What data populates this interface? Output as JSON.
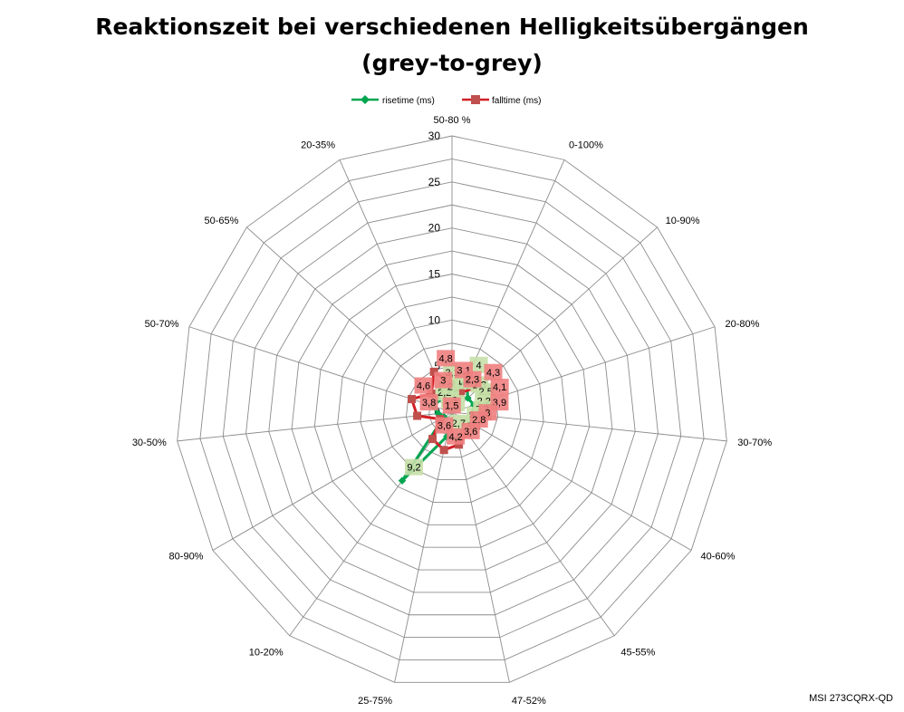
{
  "chart_data": {
    "type": "radar",
    "title_line1": "Reaktionszeit bei verschiedenen Helligkeitsübergängen",
    "title_line2": "(grey-to-grey)",
    "categories": [
      "50-80 %",
      "0-100%",
      "10-90%",
      "20-80%",
      "30-70%",
      "40-60%",
      "45-55%",
      "47-52%",
      "25-75%",
      "10-20%",
      "80-90%",
      "30-50%",
      "50-70%",
      "50-65%",
      "20-35%"
    ],
    "ylim": [
      0,
      30
    ],
    "ticks": [
      0,
      5,
      10,
      15,
      20,
      25,
      30
    ],
    "grid": true,
    "legend_position": "top",
    "series": [
      {
        "name": "risetime (ms)",
        "color": "#00a550",
        "label_bg": "#c6e0a8",
        "marker": "diamond",
        "values": [
          1.9,
          4,
          2.3,
          2.5,
          2.2,
          2.3,
          2.2,
          3,
          2.7,
          9.2,
          1,
          1.5,
          2.2,
          2,
          3.1
        ],
        "labels": [
          "1,9",
          "4",
          "2,3",
          "2,5",
          "2,2",
          "2,3",
          "2,2",
          "3",
          "2,7",
          "9,2",
          "1",
          "1,5",
          "2,2",
          "2",
          "3,1"
        ]
      },
      {
        "name": "falltime (ms)",
        "color": "#d21f26",
        "label_bg": "#f08080",
        "marker": "square",
        "values": [
          3.1,
          2.3,
          4.3,
          4.1,
          3.9,
          3,
          2.8,
          3.6,
          4.2,
          3.6,
          1.5,
          3.8,
          4.6,
          3,
          4.8
        ],
        "labels": [
          "3,1",
          "2,3",
          "4,3",
          "4,1",
          "3,9",
          "3",
          "2,8",
          "3,6",
          "4,2",
          "3,6",
          "1,5",
          "3,8",
          "4,6",
          "3",
          "4,8"
        ]
      }
    ]
  },
  "watermark": "MSI 273CQRX-QD"
}
